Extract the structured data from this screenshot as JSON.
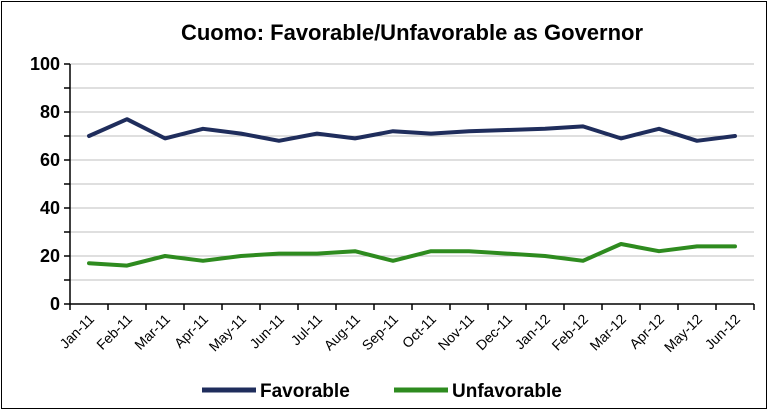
{
  "chart_data": {
    "type": "line",
    "title": "Cuomo: Favorable/Unfavorable as Governor",
    "xlabel": "",
    "ylabel": "",
    "categories": [
      "Jan-11",
      "Feb-11",
      "Mar-11",
      "Apr-11",
      "May-11",
      "Jun-11",
      "Jul-11",
      "Aug-11",
      "Sep-11",
      "Oct-11",
      "Nov-11",
      "Dec-11",
      "Jan-12",
      "Feb-12",
      "Mar-12",
      "Apr-12",
      "May-12",
      "Jun-12"
    ],
    "ylim": [
      0,
      100
    ],
    "yticks": [
      "0",
      "20",
      "40",
      "60",
      "80",
      "100"
    ],
    "grid": true,
    "legend_position": "bottom",
    "series": [
      {
        "name": "Favorable",
        "color": "#1f2d5c",
        "values": [
          70,
          77,
          69,
          73,
          71,
          68,
          71,
          69,
          72,
          71,
          72,
          72.5,
          73,
          74,
          69,
          73,
          68,
          70
        ]
      },
      {
        "name": "Unfavorable",
        "color": "#2e8b1f",
        "values": [
          17,
          16,
          20,
          18,
          20,
          21,
          21,
          22,
          18,
          22,
          22,
          21,
          20,
          18,
          25,
          22,
          24,
          24
        ]
      }
    ]
  }
}
